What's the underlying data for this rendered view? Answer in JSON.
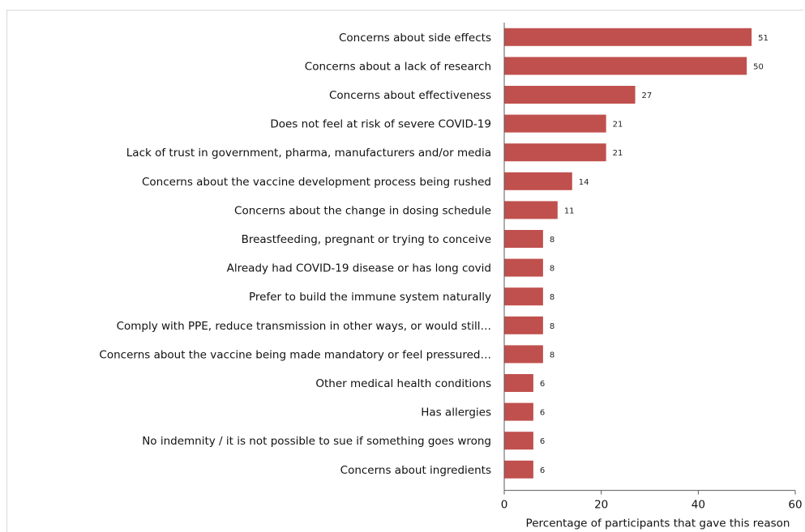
{
  "chart_data": {
    "type": "bar",
    "orientation": "horizontal",
    "categories": [
      "Concerns about side effects",
      "Concerns about a lack of research",
      "Concerns about effectiveness",
      "Does not feel at risk of severe COVID-19",
      "Lack of trust in government, pharma, manufacturers and/or media",
      "Concerns about the vaccine development process being rushed",
      "Concerns about the change in dosing schedule",
      "Breastfeeding, pregnant or trying to conceive",
      "Already had COVID-19 disease or has long covid",
      "Prefer to build the immune system naturally",
      "Comply with PPE, reduce transmission in other ways, or would still…",
      "Concerns about the vaccine being made mandatory or feel pressured…",
      "Other medical health conditions",
      "Has allergies",
      "No indemnity / it is not possible to sue if something goes wrong",
      "Concerns about ingredients"
    ],
    "values": [
      51,
      50,
      27,
      21,
      21,
      14,
      11,
      8,
      8,
      8,
      8,
      8,
      6,
      6,
      6,
      6
    ],
    "data_labels": [
      "51",
      "50",
      "27",
      "21",
      "21",
      "14",
      "11",
      "8",
      "8",
      "8",
      "8",
      "8",
      "6",
      "6",
      "6",
      "6"
    ],
    "title": "",
    "xlabel": "Percentage of participants that gave this reason",
    "ylabel": "",
    "xlim": [
      0,
      60
    ],
    "xticks": [
      "0",
      "20",
      "40",
      "60"
    ],
    "xtick_values": [
      0,
      20,
      40,
      60
    ],
    "grid": false,
    "legend": "none",
    "bar_color": "#c0504d"
  }
}
